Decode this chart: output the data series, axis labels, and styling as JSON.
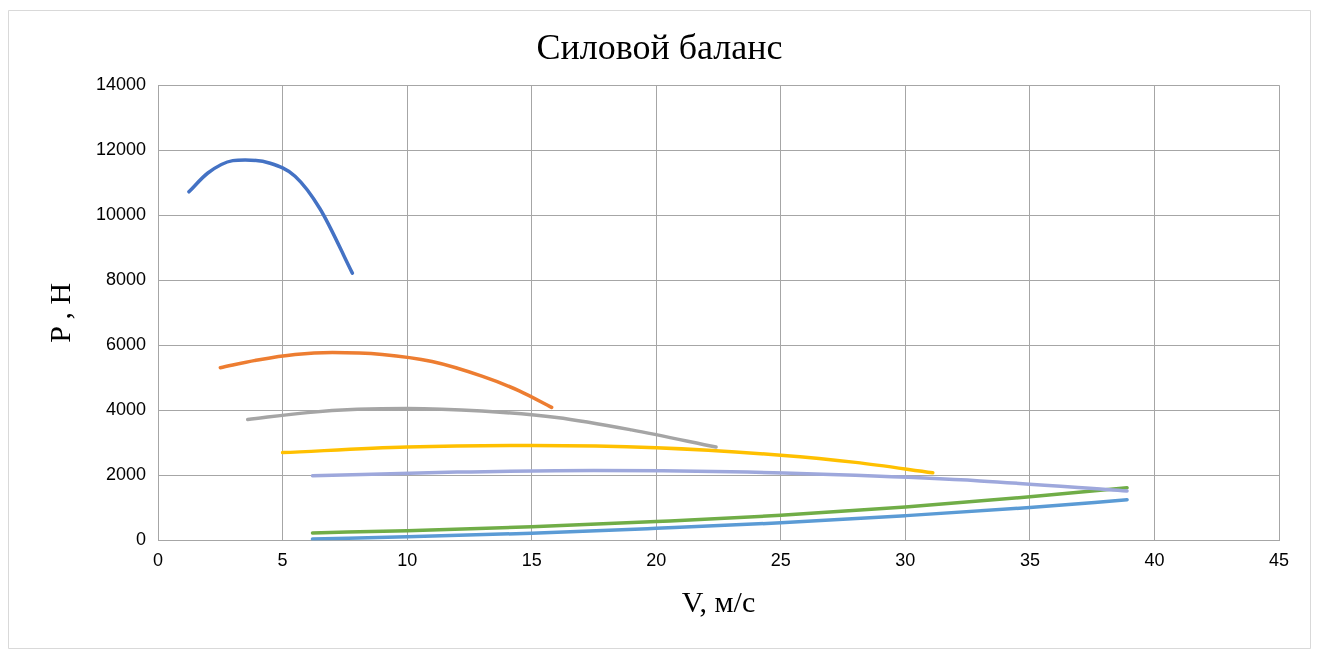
{
  "chart_data": {
    "type": "line",
    "title": "Силовой баланс",
    "xlabel": "V, м/с",
    "ylabel": "P , Н",
    "xlim": [
      0,
      45
    ],
    "xticks": [
      0,
      5,
      10,
      15,
      20,
      25,
      30,
      35,
      40,
      45
    ],
    "ylim": [
      0,
      14000
    ],
    "yticks": [
      0,
      2000,
      4000,
      6000,
      8000,
      10000,
      12000,
      14000
    ],
    "grid": true,
    "legend": false,
    "marker": "none",
    "line_style": "solid",
    "series": [
      {
        "color": "#4472c4",
        "x": [
          1.24,
          2,
          3,
          3.5,
          4.5,
          5.5,
          6.5,
          7.8
        ],
        "values": [
          10720,
          11300,
          11680,
          11700,
          11600,
          11200,
          10200,
          8220
        ]
      },
      {
        "color": "#ed7d31",
        "x": [
          2.5,
          4,
          5.5,
          7,
          9,
          11,
          13,
          14.5,
          15.8
        ],
        "values": [
          5310,
          5550,
          5720,
          5780,
          5720,
          5500,
          5050,
          4600,
          4090
        ]
      },
      {
        "color": "#a5a5a5",
        "x": [
          3.6,
          6,
          8,
          10,
          13,
          16,
          19,
          22.4
        ],
        "values": [
          3720,
          3930,
          4030,
          4060,
          3980,
          3780,
          3400,
          2870
        ]
      },
      {
        "color": "#ffc000",
        "x": [
          5,
          10,
          15,
          20,
          25,
          28,
          31.1
        ],
        "values": [
          2700,
          2870,
          2920,
          2850,
          2620,
          2400,
          2080
        ]
      },
      {
        "color": "#9ea8dc",
        "x": [
          6.2,
          12,
          17.5,
          23,
          28,
          33,
          38.9
        ],
        "values": [
          1990,
          2100,
          2150,
          2110,
          2000,
          1830,
          1520
        ]
      },
      {
        "color": "#70ad47",
        "x": [
          6.2,
          10,
          15,
          20,
          25,
          30,
          35,
          38.9
        ],
        "values": [
          230,
          300,
          420,
          580,
          770,
          1030,
          1340,
          1620
        ]
      },
      {
        "color": "#5b9bd5",
        "x": [
          6.2,
          10,
          15,
          20,
          25,
          30,
          35,
          38.9
        ],
        "values": [
          40,
          110,
          220,
          370,
          540,
          760,
          1010,
          1250
        ]
      }
    ]
  }
}
